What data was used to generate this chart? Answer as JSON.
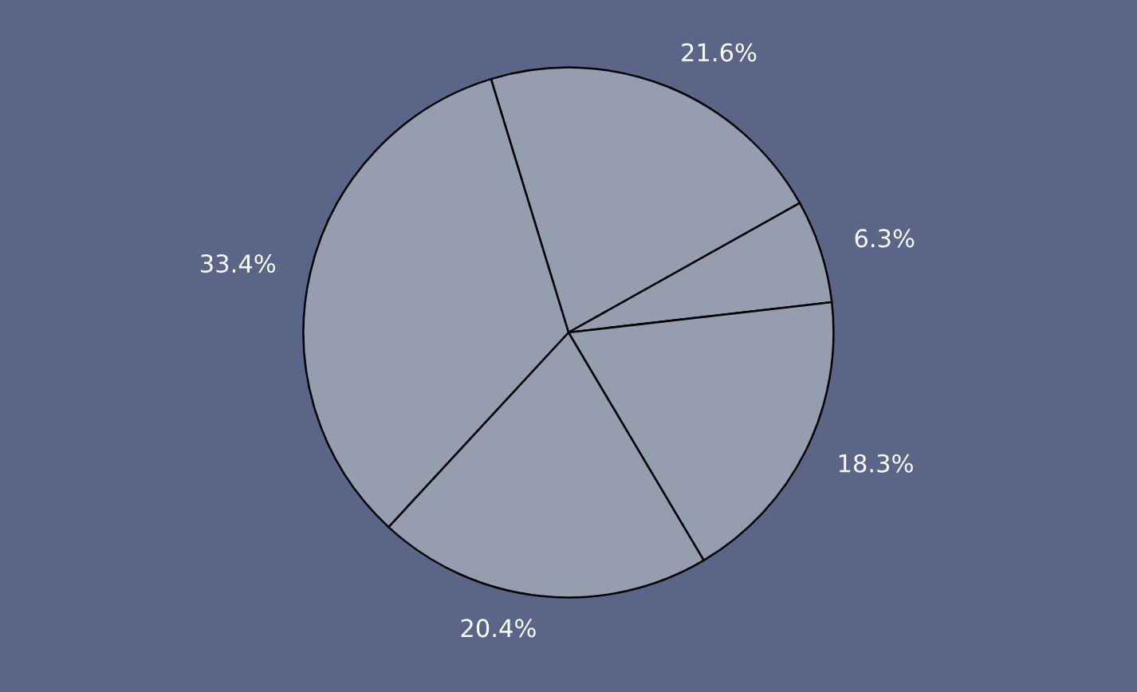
{
  "chart_data": {
    "type": "pie",
    "categories": [
      null,
      null,
      null,
      null,
      null
    ],
    "values": [
      21.6,
      6.3,
      18.3,
      20.4,
      33.4
    ],
    "value_labels": [
      "21.6%",
      "6.3%",
      "18.3%",
      "20.4%",
      "33.4%"
    ],
    "colors": [
      "#959dae",
      "#959dae",
      "#959dae",
      "#959dae",
      "#959dae"
    ]
  }
}
